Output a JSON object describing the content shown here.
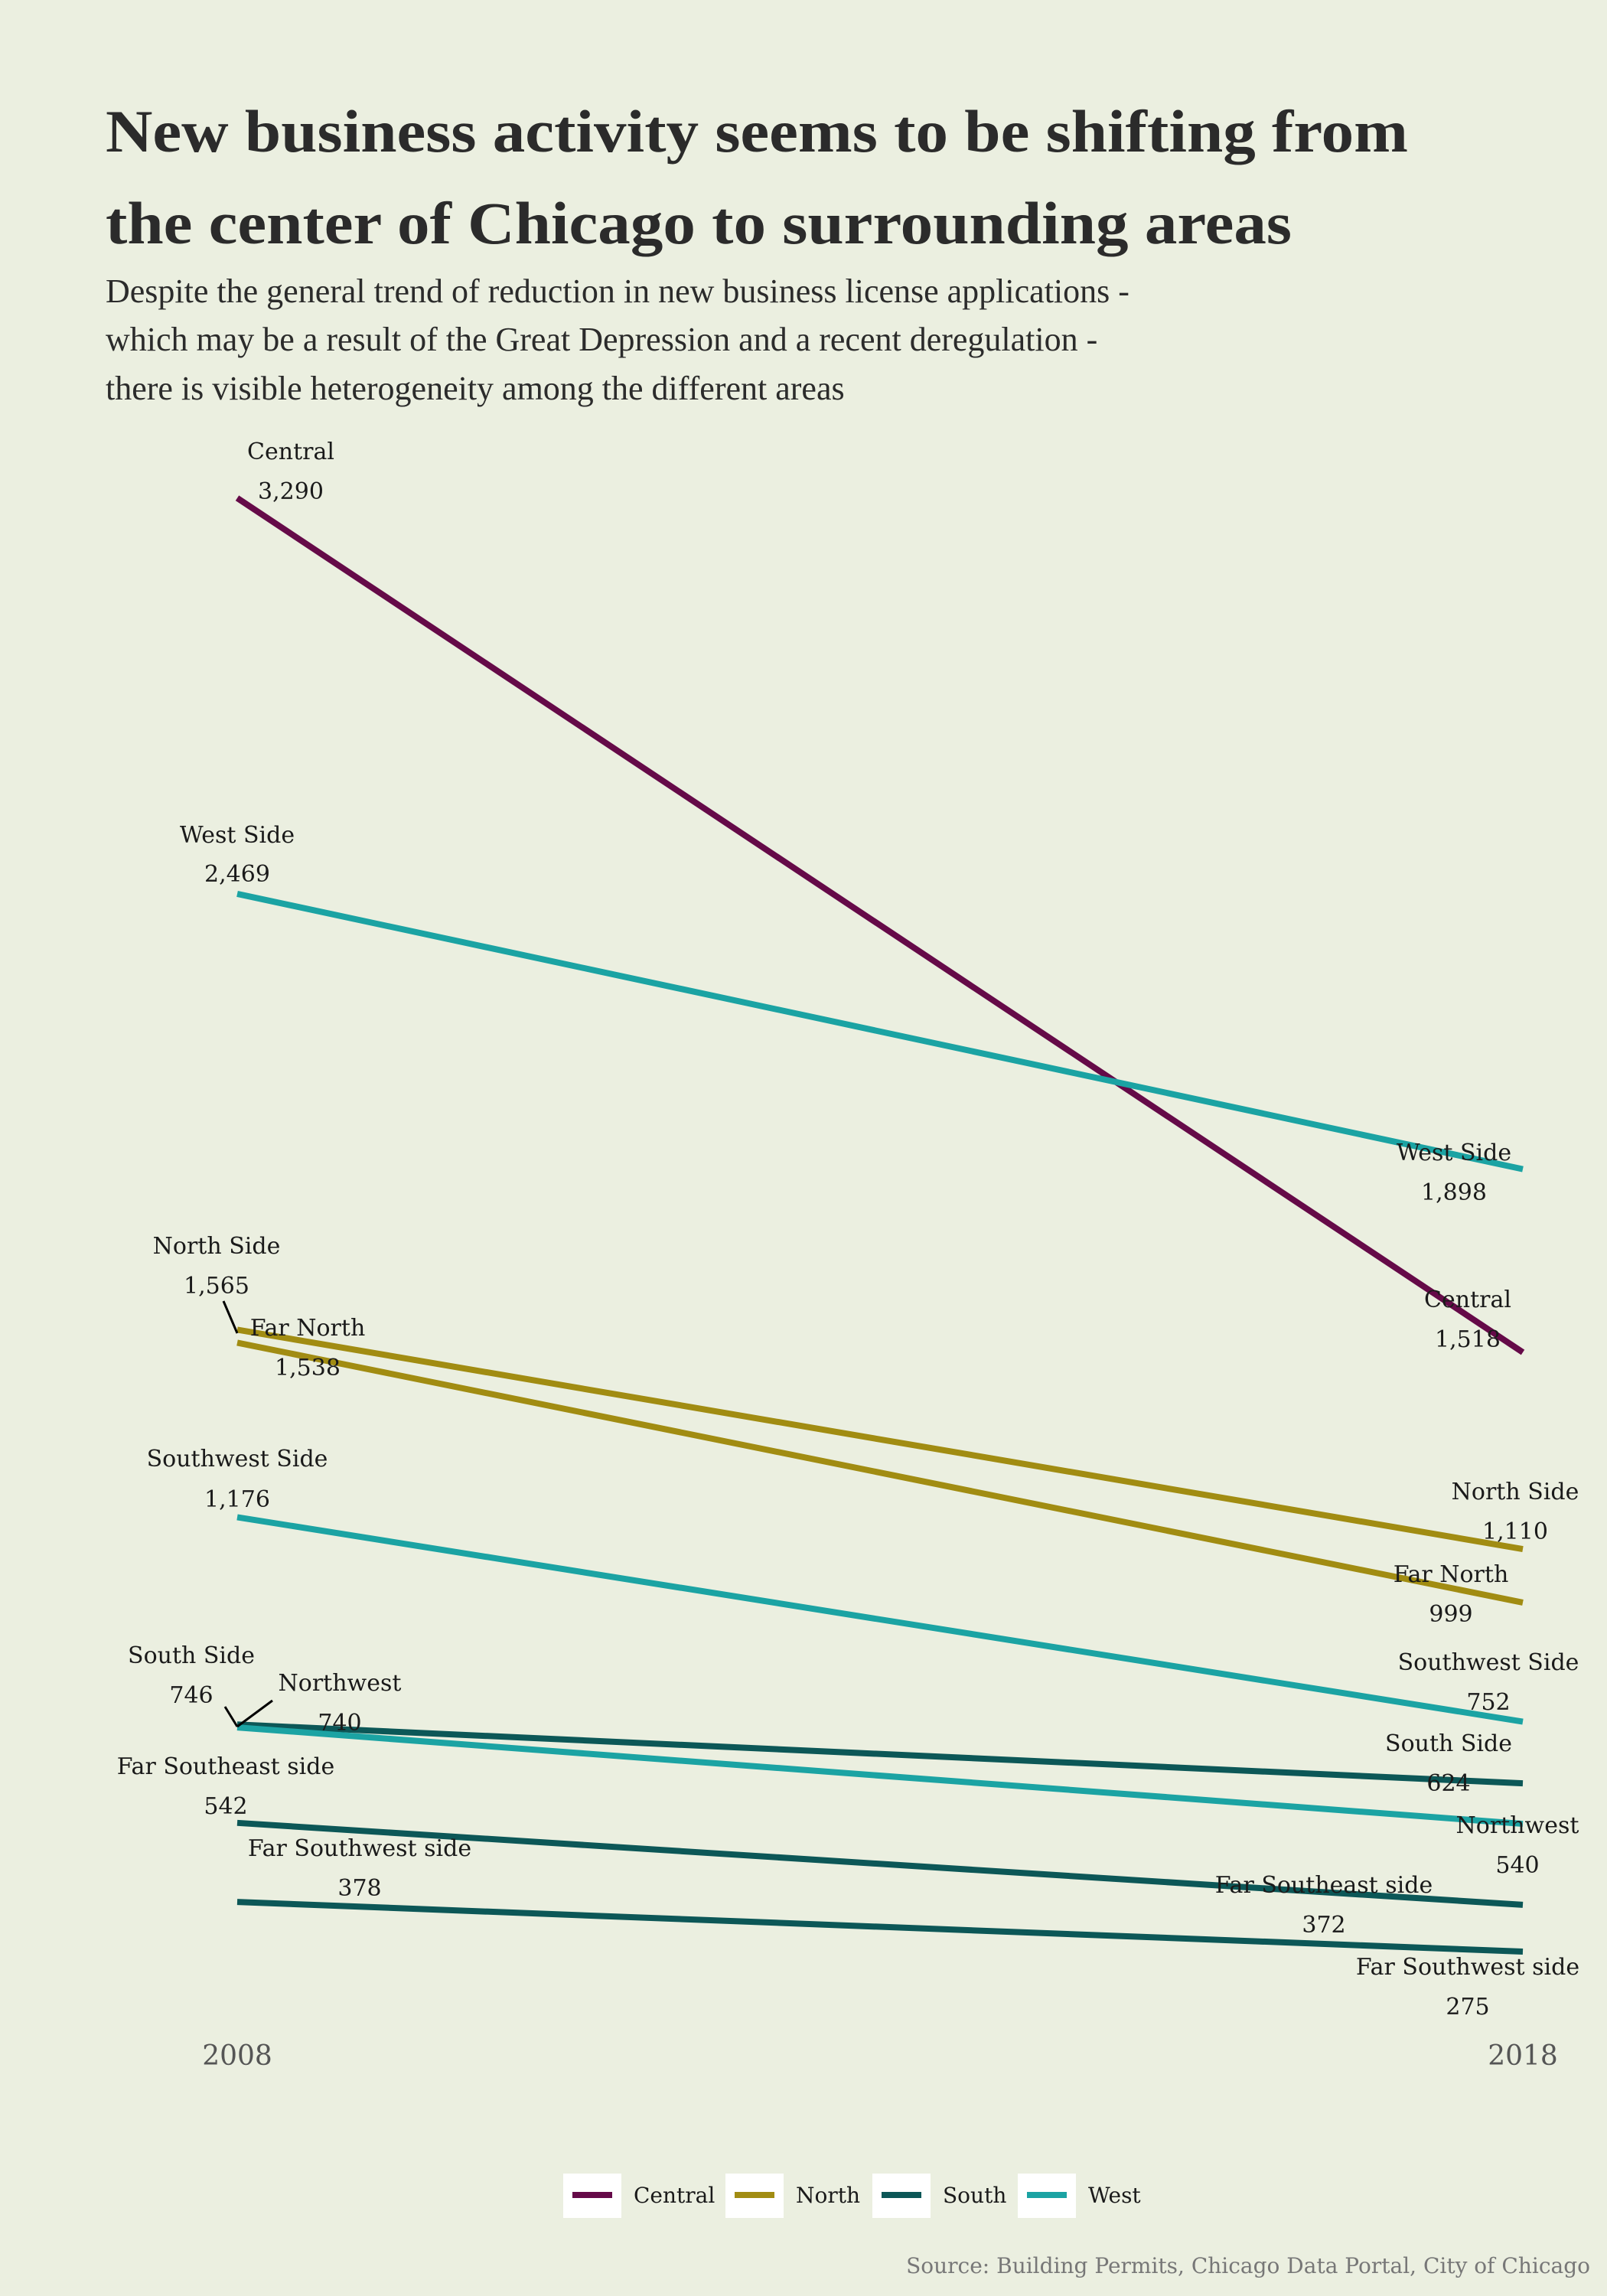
{
  "colors": {
    "background": "#ebefe0",
    "title": "#2b2b2b",
    "label": "#1a1a1a",
    "axis": "#555555",
    "source": "#777777",
    "Central": "#650a48",
    "North": "#a18c12",
    "South": "#0c5757",
    "West": "#1ba3a3"
  },
  "chart_data": {
    "type": "line",
    "title_lines": [
      "New business activity seems to be shifting from",
      "the center of Chicago to surrounding areas"
    ],
    "subtitle_lines": [
      "Despite the general trend of reduction in new business license applications -",
      " which may be a result of the Great Depression and a recent deregulation -",
      "there is visible heterogeneity among the different areas"
    ],
    "x": [
      "2008",
      "2018"
    ],
    "ylim": [
      0,
      3500
    ],
    "grid": false,
    "legend_position": "bottom",
    "legend": [
      {
        "name": "Central"
      },
      {
        "name": "North"
      },
      {
        "name": "South"
      },
      {
        "name": "West"
      }
    ],
    "series": [
      {
        "area": "Central",
        "group": "Central",
        "start": 3290,
        "end": 1518,
        "start_label": "3,290",
        "end_label": "1,518",
        "start_name": "Central",
        "end_name": "Central"
      },
      {
        "area": "West Side",
        "group": "West",
        "start": 2469,
        "end": 1898,
        "start_label": "2,469",
        "end_label": "1,898",
        "start_name": "West Side",
        "end_name": "West Side"
      },
      {
        "area": "North Side",
        "group": "North",
        "start": 1565,
        "end": 1110,
        "start_label": "1,565",
        "end_label": "1,110",
        "start_name": "North Side",
        "end_name": "North Side"
      },
      {
        "area": "Far North",
        "group": "North",
        "start": 1538,
        "end": 999,
        "start_label": "1,538",
        "end_label": "999",
        "start_name": "Far North",
        "end_name": "Far North"
      },
      {
        "area": "Southwest Side",
        "group": "West",
        "start": 1176,
        "end": 752,
        "start_label": "1,176",
        "end_label": "752",
        "start_name": "Southwest Side",
        "end_name": "Southwest Side"
      },
      {
        "area": "South Side",
        "group": "South",
        "start": 746,
        "end": 624,
        "start_label": "746",
        "end_label": "624",
        "start_name": "South Side",
        "end_name": "South Side"
      },
      {
        "area": "Northwest",
        "group": "West",
        "start": 740,
        "end": 540,
        "start_label": "740",
        "end_label": "540",
        "start_name": "Northwest",
        "end_name": "Northwest"
      },
      {
        "area": "Far Southeast side",
        "group": "South",
        "start": 542,
        "end": 372,
        "start_label": "542",
        "end_label": "372",
        "start_name": "Far Southeast side",
        "end_name": "Far Southeast side"
      },
      {
        "area": "Far Southwest side",
        "group": "South",
        "start": 378,
        "end": 275,
        "start_label": "378",
        "end_label": "275",
        "start_name": "Far Southwest side",
        "end_name": "Far Southwest side"
      }
    ],
    "source": "Source: Building Permits, Chicago Data Portal, City of Chicago"
  }
}
